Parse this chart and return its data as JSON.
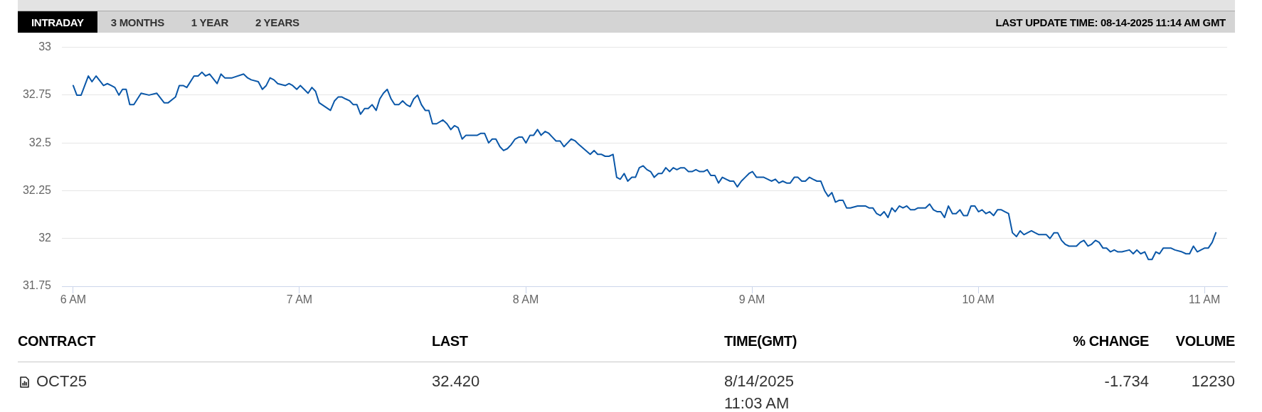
{
  "chart_data": [
    {
      "type": "line",
      "annotations": [
        "INTRADAY",
        "3 MONTHS",
        "1 YEAR",
        "2 YEARS",
        "LAST UPDATE TIME: 08-14-2025 11:14 AM GMT"
      ],
      "x": [
        6.0,
        6.016,
        6.035,
        6.067,
        6.083,
        6.101,
        6.134,
        6.151,
        6.168,
        6.184,
        6.202,
        6.218,
        6.234,
        6.25,
        6.268,
        6.3,
        6.335,
        6.369,
        6.402,
        6.42,
        6.452,
        6.469,
        6.486,
        6.502,
        6.534,
        6.552,
        6.569,
        6.585,
        6.603,
        6.636,
        6.653,
        6.67,
        6.702,
        6.753,
        6.771,
        6.787,
        6.818,
        6.836,
        6.853,
        6.87,
        6.887,
        6.904,
        6.938,
        6.954,
        6.97,
        6.988,
        7.004,
        7.038,
        7.055,
        7.071,
        7.087,
        7.137,
        7.155,
        7.171,
        7.188,
        7.204,
        7.222,
        7.238,
        7.254,
        7.27,
        7.288,
        7.304,
        7.321,
        7.339,
        7.355,
        7.371,
        7.388,
        7.405,
        7.421,
        7.439,
        7.456,
        7.473,
        7.489,
        7.505,
        7.522,
        7.539,
        7.556,
        7.572,
        7.588,
        7.606,
        7.634,
        7.652,
        7.669,
        7.685,
        7.701,
        7.719,
        7.736,
        7.752,
        7.786,
        7.802,
        7.818,
        7.836,
        7.852,
        7.868,
        7.886,
        7.902,
        7.919,
        7.935,
        7.953,
        7.969,
        7.985,
        8.001,
        8.019,
        8.035,
        8.052,
        8.068,
        8.086,
        8.102,
        8.118,
        8.134,
        8.152,
        8.169,
        8.185,
        8.201,
        8.219,
        8.236,
        8.285,
        8.302,
        8.318,
        8.335,
        8.351,
        8.368,
        8.386,
        8.402,
        8.418,
        8.435,
        8.451,
        8.469,
        8.485,
        8.502,
        8.519,
        8.536,
        8.552,
        8.568,
        8.586,
        8.602,
        8.619,
        8.636,
        8.652,
        8.668,
        8.685,
        8.701,
        8.719,
        8.735,
        8.752,
        8.769,
        8.786,
        8.802,
        8.818,
        8.836,
        8.852,
        8.869,
        8.886,
        8.903,
        8.919,
        8.935,
        8.953,
        8.97,
        8.987,
        9.002,
        9.02,
        9.036,
        9.052,
        9.07,
        9.086,
        9.103,
        9.119,
        9.136,
        9.153,
        9.169,
        9.187,
        9.203,
        9.22,
        9.236,
        9.254,
        9.27,
        9.287,
        9.304,
        9.321,
        9.337,
        9.353,
        9.369,
        9.386,
        9.402,
        9.418,
        9.435,
        9.467,
        9.501,
        9.517,
        9.534,
        9.551,
        9.567,
        9.584,
        9.601,
        9.618,
        9.633,
        9.651,
        9.667,
        9.684,
        9.701,
        9.718,
        9.734,
        9.767,
        9.785,
        9.802,
        9.819,
        9.834,
        9.851,
        9.868,
        9.886,
        9.902,
        9.919,
        9.935,
        9.952,
        9.968,
        9.985,
        10.001,
        10.017,
        10.034,
        10.05,
        10.068,
        10.085,
        10.102,
        10.118,
        10.134,
        10.151,
        10.169,
        10.185,
        10.202,
        10.218,
        10.235,
        10.251,
        10.268,
        10.284,
        10.301,
        10.317,
        10.335,
        10.351,
        10.368,
        10.384,
        10.401,
        10.418,
        10.434,
        10.451,
        10.467,
        10.485,
        10.501,
        10.518,
        10.534,
        10.551,
        10.567,
        10.584,
        10.601,
        10.617,
        10.635,
        10.668,
        10.685,
        10.701,
        10.718,
        10.736,
        10.752,
        10.768,
        10.785,
        10.801,
        10.818,
        10.835,
        10.851,
        10.869,
        10.9,
        10.918,
        10.934,
        10.951,
        10.968,
        10.984,
        11.001,
        11.017,
        11.034,
        11.05
      ],
      "series": [
        {
          "color": "#0a57a8",
          "values": [
            32.8,
            32.75,
            32.75,
            32.85,
            32.82,
            32.85,
            32.8,
            32.81,
            32.8,
            32.79,
            32.75,
            32.78,
            32.78,
            32.7,
            32.7,
            32.76,
            32.75,
            32.76,
            32.71,
            32.71,
            32.74,
            32.8,
            32.8,
            32.79,
            32.85,
            32.85,
            32.87,
            32.85,
            32.86,
            32.81,
            32.86,
            32.84,
            32.84,
            32.86,
            32.84,
            32.83,
            32.82,
            32.78,
            32.8,
            32.84,
            32.83,
            32.81,
            32.8,
            32.81,
            32.8,
            32.78,
            32.8,
            32.76,
            32.79,
            32.77,
            32.71,
            32.67,
            32.72,
            32.74,
            32.74,
            32.73,
            32.72,
            32.7,
            32.7,
            32.65,
            32.68,
            32.68,
            32.7,
            32.67,
            32.73,
            32.76,
            32.78,
            32.73,
            32.7,
            32.7,
            32.72,
            32.7,
            32.69,
            32.73,
            32.75,
            32.7,
            32.67,
            32.67,
            32.6,
            32.6,
            32.62,
            32.6,
            32.57,
            32.59,
            32.58,
            32.52,
            32.54,
            32.54,
            32.54,
            32.55,
            32.55,
            32.5,
            32.52,
            32.52,
            32.48,
            32.46,
            32.47,
            32.49,
            32.52,
            32.53,
            32.53,
            32.5,
            32.54,
            32.54,
            32.57,
            32.54,
            32.56,
            32.55,
            32.53,
            32.51,
            32.51,
            32.48,
            32.5,
            32.52,
            32.51,
            32.49,
            32.44,
            32.46,
            32.44,
            32.44,
            32.43,
            32.43,
            32.44,
            32.32,
            32.31,
            32.34,
            32.3,
            32.32,
            32.32,
            32.37,
            32.38,
            32.36,
            32.35,
            32.32,
            32.34,
            32.34,
            32.37,
            32.35,
            32.37,
            32.36,
            32.37,
            32.37,
            32.35,
            32.35,
            32.36,
            32.35,
            32.35,
            32.36,
            32.33,
            32.33,
            32.29,
            32.32,
            32.31,
            32.3,
            32.3,
            32.27,
            32.3,
            32.32,
            32.34,
            32.35,
            32.32,
            32.32,
            32.32,
            32.31,
            32.3,
            32.31,
            32.29,
            32.3,
            32.29,
            32.29,
            32.32,
            32.32,
            32.3,
            32.3,
            32.32,
            32.31,
            32.3,
            32.3,
            32.25,
            32.22,
            32.24,
            32.19,
            32.2,
            32.2,
            32.16,
            32.16,
            32.17,
            32.17,
            32.16,
            32.16,
            32.13,
            32.12,
            32.14,
            32.11,
            32.16,
            32.14,
            32.17,
            32.16,
            32.17,
            32.15,
            32.15,
            32.16,
            32.16,
            32.18,
            32.15,
            32.14,
            32.14,
            32.11,
            32.17,
            32.13,
            32.13,
            32.15,
            32.12,
            32.12,
            32.17,
            32.17,
            32.14,
            32.15,
            32.13,
            32.14,
            32.12,
            32.15,
            32.15,
            32.14,
            32.13,
            32.03,
            32.01,
            32.04,
            32.02,
            32.03,
            32.04,
            32.03,
            32.02,
            32.02,
            32.02,
            32.0,
            32.03,
            32.03,
            31.99,
            31.97,
            31.96,
            31.96,
            31.96,
            31.98,
            31.99,
            31.96,
            31.97,
            31.99,
            31.98,
            31.95,
            31.95,
            31.93,
            31.94,
            31.93,
            31.93,
            31.94,
            31.92,
            31.94,
            31.92,
            31.93,
            31.89,
            31.89,
            31.93,
            31.92,
            31.95,
            31.95,
            31.95,
            31.94,
            31.93,
            31.92,
            31.92,
            31.96,
            31.93,
            31.94,
            31.95,
            31.95,
            31.98,
            32.03
          ]
        }
      ],
      "xlim": [
        5.95,
        11.1
      ],
      "xticks": [
        {
          "value": 6,
          "label": "6 AM"
        },
        {
          "value": 7,
          "label": "7 AM"
        },
        {
          "value": 8,
          "label": "8 AM"
        },
        {
          "value": 9,
          "label": "9 AM"
        },
        {
          "value": 10,
          "label": "10 AM"
        },
        {
          "value": 11,
          "label": "11 AM"
        }
      ],
      "ylim": [
        31.75,
        33
      ],
      "yticks": [
        31.75,
        32,
        32.25,
        32.5,
        32.75,
        33
      ],
      "grid": "y",
      "marker": "none"
    },
    {
      "type": "other",
      "annotations": [
        "CONTRACT",
        "LAST",
        "TIME(GMT)",
        "% CHANGE",
        "VOLUME",
        "OCT25",
        "32.420",
        "8/14/2025 11:03 AM",
        "-1.734",
        "12230"
      ]
    }
  ]
}
